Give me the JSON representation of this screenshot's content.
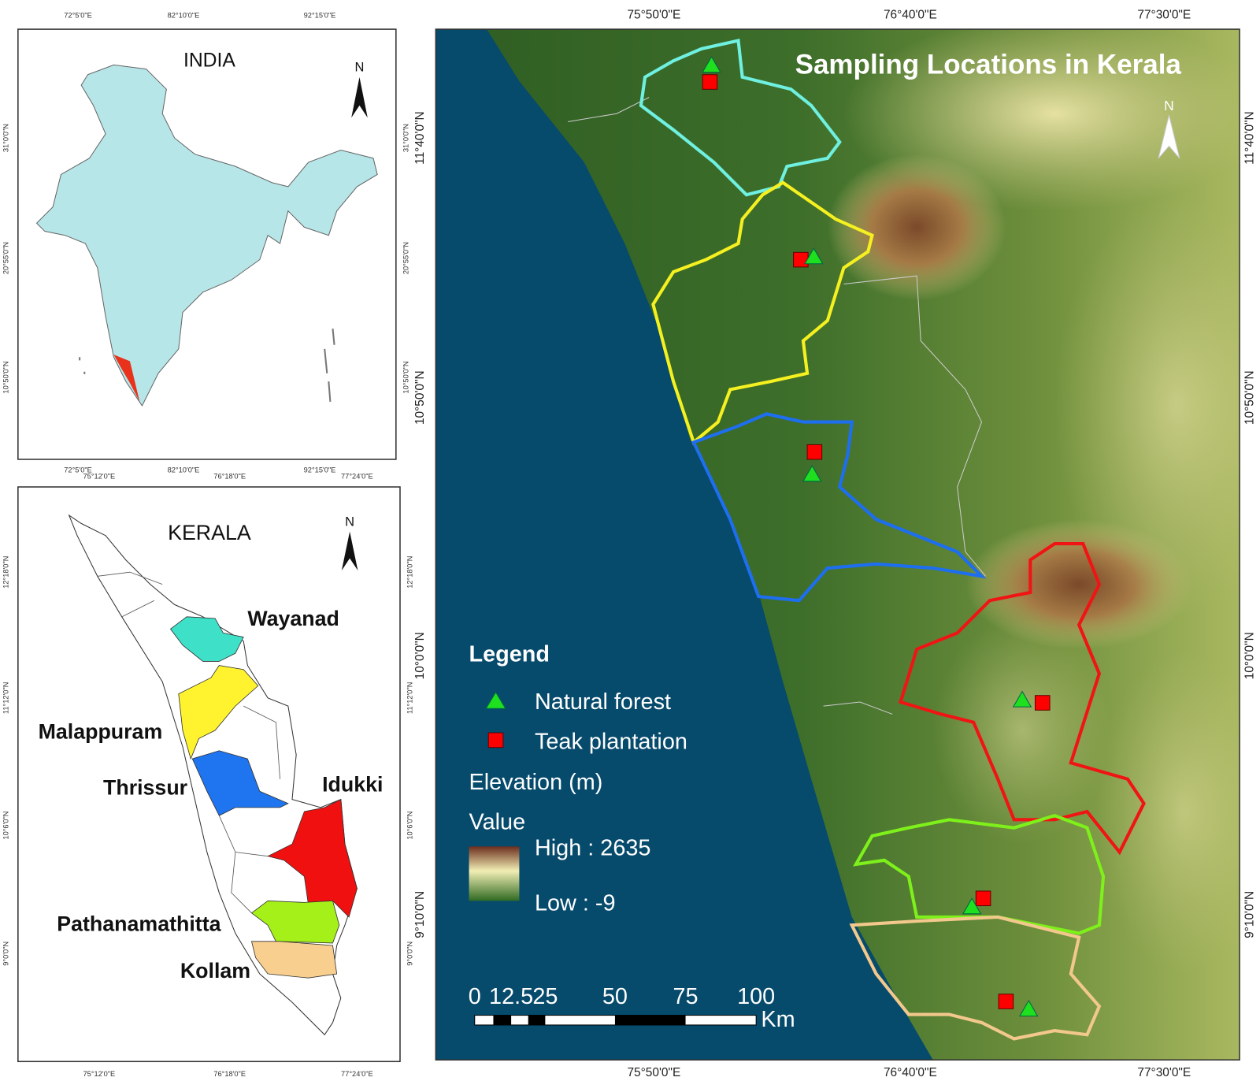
{
  "india_inset": {
    "title": "INDIA",
    "north": "N",
    "top_labels": [
      "72°5'0\"E",
      "82°10'0\"E",
      "92°15'0\"E"
    ],
    "bottom_labels": [
      "72°5'0\"E",
      "82°10'0\"E",
      "92°15'0\"E"
    ],
    "left_labels": [
      "31°0'0\"N",
      "20°55'0\"N",
      "10°50'0\"N"
    ],
    "right_labels": [
      "31°0'0\"N",
      "20°55'0\"N",
      "10°50'0\"N"
    ]
  },
  "kerala_inset": {
    "title": "KERALA",
    "north": "N",
    "districts": [
      "Wayanad",
      "Malappuram",
      "Thrissur",
      "Idukki",
      "Pathanamathitta",
      "Kollam"
    ],
    "top_labels": [
      "75°12'0\"E",
      "76°18'0\"E",
      "77°24'0\"E"
    ],
    "bottom_labels": [
      "75°12'0\"E",
      "76°18'0\"E",
      "77°24'0\"E"
    ],
    "left_labels": [
      "12°18'0\"N",
      "11°12'0\"N",
      "10°6'0\"N",
      "9°0'0\"N"
    ],
    "right_labels": [
      "12°18'0\"N",
      "11°12'0\"N",
      "10°6'0\"N",
      "9°0'0\"N"
    ]
  },
  "main_map": {
    "title": "Sampling Locations in Kerala",
    "north": "N",
    "top_labels": [
      "75°50'0\"E",
      "76°40'0\"E",
      "77°30'0\"E"
    ],
    "bottom_labels": [
      "75°50'0\"E",
      "76°40'0\"E",
      "77°30'0\"E"
    ],
    "left_labels": [
      "11°40'0\"N",
      "10°50'0\"N",
      "10°0'0\"N",
      "9°10'0\"N"
    ],
    "right_labels": [
      "11°40'0\"N",
      "10°50'0\"N",
      "10°0'0\"N",
      "9°10'0\"N"
    ],
    "legend": {
      "heading": "Legend",
      "items": [
        "Natural forest",
        "Teak plantation"
      ],
      "elevation_title": "Elevation (m)",
      "value_title": "Value",
      "high": "High : 2635",
      "low": "Low : -9"
    },
    "scale_bar": {
      "labels": [
        "0",
        "12.5",
        "25",
        "50",
        "75",
        "100"
      ],
      "unit": "Km"
    }
  }
}
